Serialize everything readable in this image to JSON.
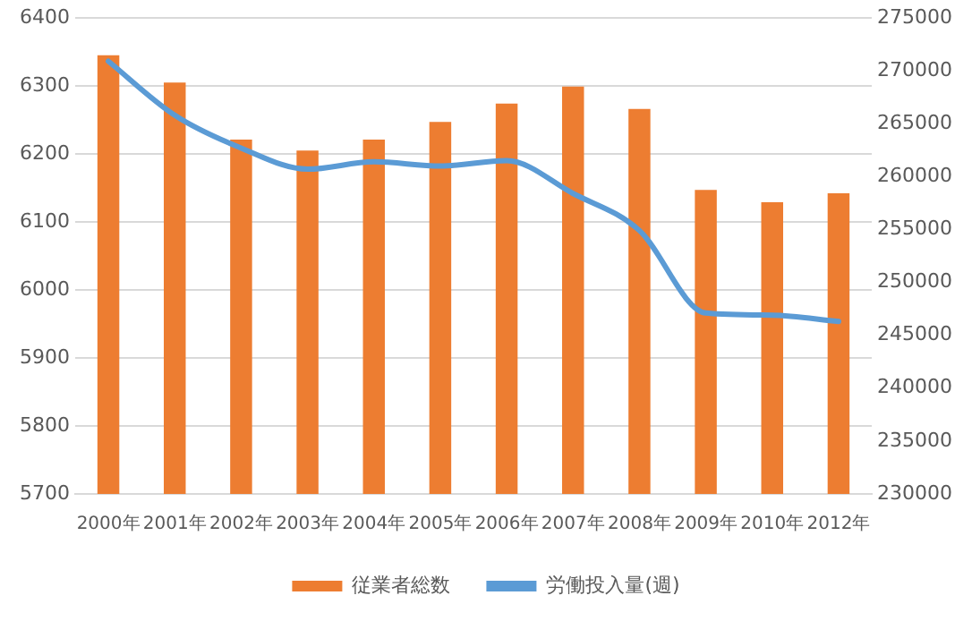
{
  "chart_data": {
    "type": "bar",
    "categories": [
      "2000年",
      "2001年",
      "2002年",
      "2003年",
      "2004年",
      "2005年",
      "2006年",
      "2007年",
      "2008年",
      "2009年",
      "2010年",
      "2012年"
    ],
    "series": [
      {
        "name": "従業者総数",
        "color": "#ed7d31",
        "values": [
          6345,
          6305,
          6221,
          6205,
          6221,
          6247,
          6274,
          6299,
          6266,
          6147,
          6129,
          6142
        ]
      },
      {
        "name": "労働投入量(週)",
        "type": "line",
        "axis": "y2",
        "color": "#5b9bd5",
        "values": [
          270900,
          265800,
          262700,
          260700,
          261400,
          261000,
          261500,
          258400,
          254900,
          247100,
          246900,
          246300
        ]
      }
    ],
    "ylim": [
      5700,
      6400
    ],
    "yticks": [
      5700,
      5800,
      5900,
      6000,
      6100,
      6200,
      6300,
      6400
    ],
    "y2lim": [
      230000,
      275000
    ],
    "y2ticks": [
      230000,
      235000,
      240000,
      245000,
      250000,
      255000,
      260000,
      265000,
      270000,
      275000
    ],
    "grid": "y",
    "legend": "bottom",
    "marker": "none"
  }
}
